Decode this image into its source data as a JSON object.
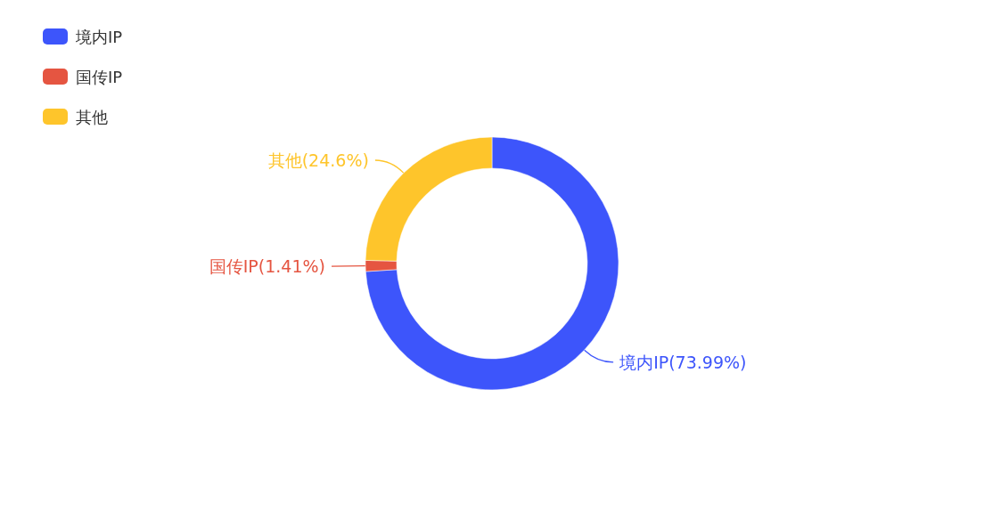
{
  "chart_data": {
    "type": "donut",
    "categories": [
      "境内IP",
      "国传IP",
      "其他"
    ],
    "values": [
      73.99,
      1.41,
      24.6
    ],
    "colors": [
      "#3d55fb",
      "#e55541",
      "#fec52b"
    ],
    "value_labels": [
      "境内IP(73.99%)",
      "国传IP(1.41%)",
      "其他(24.6%)"
    ],
    "legend": "top left"
  }
}
